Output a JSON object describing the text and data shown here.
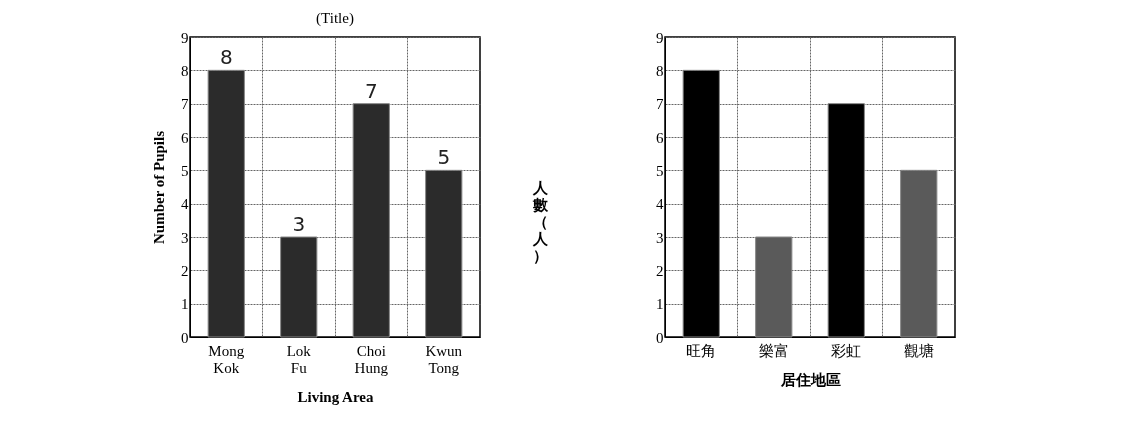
{
  "chart_data": [
    {
      "type": "bar",
      "title": "(Title)",
      "xlabel": "Living Area",
      "ylabel": "Number of Pupils",
      "categories": [
        "Mong Kok",
        "Lok Fu",
        "Choi Hung",
        "Kwun Tong"
      ],
      "values": [
        8,
        3,
        7,
        5
      ],
      "color": "#2b2b2b",
      "ylim": [
        0,
        9
      ],
      "yticks": [
        0,
        1,
        2,
        3,
        4,
        5,
        6,
        7,
        8,
        9
      ],
      "grid": true,
      "data_labels": true
    },
    {
      "type": "bar",
      "xlabel": "居住地區",
      "ylabel": "人數（人）",
      "categories": [
        "旺角",
        "樂富",
        "彩虹",
        "觀塘"
      ],
      "values": [
        8,
        3,
        7,
        5
      ],
      "colors": [
        "#000000",
        "#5a5a5a",
        "#000000",
        "#5a5a5a"
      ],
      "ylim": [
        0,
        9
      ],
      "yticks": [
        0,
        1,
        2,
        3,
        4,
        5,
        6,
        7,
        8,
        9
      ],
      "grid": true
    }
  ]
}
